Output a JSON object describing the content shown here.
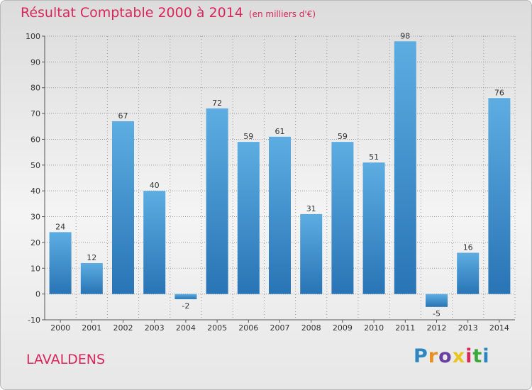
{
  "header": {
    "title": "Résultat Comptable 2000 à 2014",
    "unit": "(en milliers d'€)"
  },
  "footer": {
    "place": "LAVALDENS",
    "brand_letters": [
      "P",
      "r",
      "o",
      "x",
      "i",
      "t",
      "i"
    ],
    "brand_colors": [
      "#2e86c1",
      "#e8901f",
      "#6a3fa0",
      "#e8c61f",
      "#d9265b",
      "#3aa83a",
      "#2e86c1"
    ]
  },
  "colors": {
    "bar_top": "#5dade2",
    "bar_bottom": "#2874b5",
    "title": "#d9265b",
    "grid": "#9a9a9a"
  },
  "chart_data": {
    "type": "bar",
    "categories": [
      "2000",
      "2001",
      "2002",
      "2003",
      "2004",
      "2005",
      "2006",
      "2007",
      "2008",
      "2009",
      "2010",
      "2011",
      "2012",
      "2013",
      "2014"
    ],
    "values": [
      24,
      12,
      67,
      40,
      -2,
      72,
      59,
      61,
      31,
      59,
      51,
      98,
      -5,
      16,
      76
    ],
    "data_labels": [
      "24",
      "12",
      "67",
      "40",
      "-2",
      "72",
      "59",
      "61",
      "31",
      "59",
      "51",
      "98",
      "-5",
      "16",
      "76"
    ],
    "yticks": [
      "-10",
      "0",
      "10",
      "20",
      "30",
      "40",
      "50",
      "60",
      "70",
      "80",
      "90",
      "100"
    ],
    "ylim": [
      -10,
      100
    ],
    "grid": true
  }
}
